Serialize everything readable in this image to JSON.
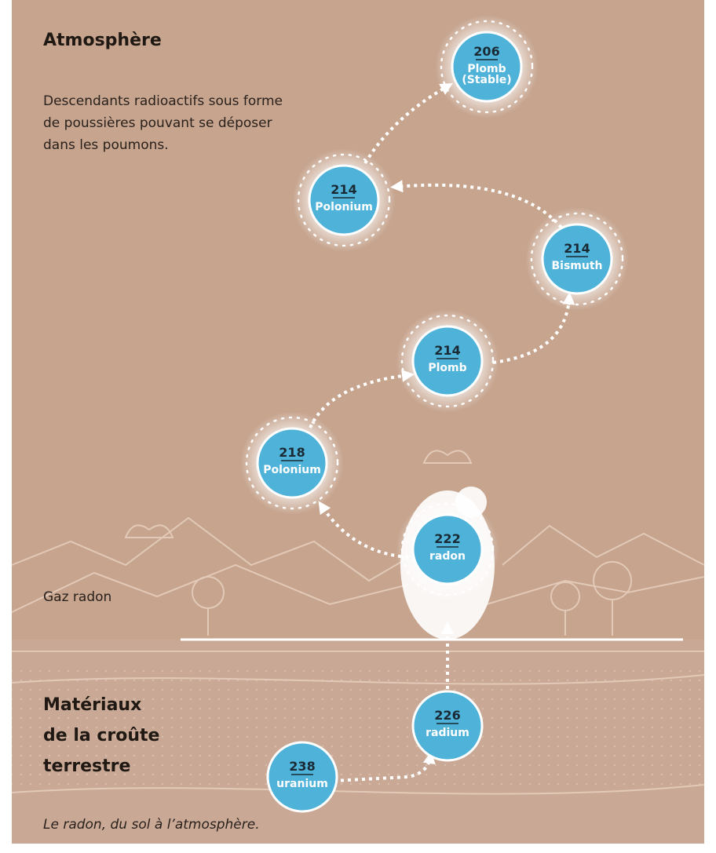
{
  "header": {
    "title": "Atmosphère",
    "description": [
      "Descendants radioactifs sous forme",
      "de poussières pouvant se déposer",
      "dans les poumons."
    ]
  },
  "gas_label": "Gaz radon",
  "ground_title": [
    "Matériaux",
    "de la croûte",
    "terrestre"
  ],
  "caption": "Le radon, du sol à l’atmosphère.",
  "nodes": [
    {
      "number": 206,
      "name": "Plomb",
      "note": "(Stable)"
    },
    {
      "number": 214,
      "name": "Polonium"
    },
    {
      "number": 214,
      "name": "Bismuth"
    },
    {
      "number": 214,
      "name": "Plomb"
    },
    {
      "number": 218,
      "name": "Polonium"
    },
    {
      "number": 222,
      "name": "radon"
    },
    {
      "number": 226,
      "name": "radium"
    },
    {
      "number": 238,
      "name": "uranium"
    }
  ]
}
